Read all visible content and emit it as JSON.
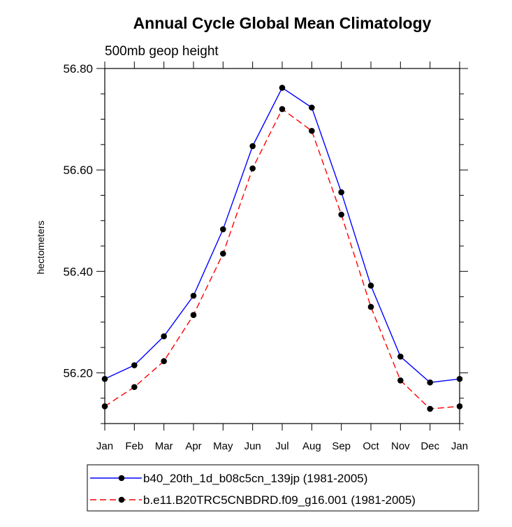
{
  "chart_data": {
    "type": "line",
    "title": "Annual Cycle Global Mean Climatology",
    "subtitle": "500mb geop height",
    "xlabel": "",
    "ylabel": "hectometers",
    "categories": [
      "Jan",
      "Feb",
      "Mar",
      "Apr",
      "May",
      "Jun",
      "Jul",
      "Aug",
      "Sep",
      "Oct",
      "Nov",
      "Dec",
      "Jan"
    ],
    "ylim": [
      56.1,
      56.8
    ],
    "yticks": [
      "56.20",
      "56.40",
      "56.60",
      "56.80"
    ],
    "grid": false,
    "legend_position": "bottom",
    "series": [
      {
        "name": "b40_20th_1d_b08c5cn_139jp (1981-2005)",
        "color": "#0000ff",
        "dash": "solid",
        "values": [
          56.188,
          56.215,
          56.272,
          56.352,
          56.483,
          56.647,
          56.762,
          56.723,
          56.556,
          56.372,
          56.232,
          56.181,
          56.188
        ]
      },
      {
        "name": "b.e11.B20TRC5CNBDRD.f09_g16.001 (1981-2005)",
        "color": "#ff0000",
        "dash": "dashed",
        "values": [
          56.134,
          56.172,
          56.223,
          56.314,
          56.435,
          56.603,
          56.72,
          56.677,
          56.512,
          56.33,
          56.185,
          56.129,
          56.134
        ]
      }
    ]
  }
}
